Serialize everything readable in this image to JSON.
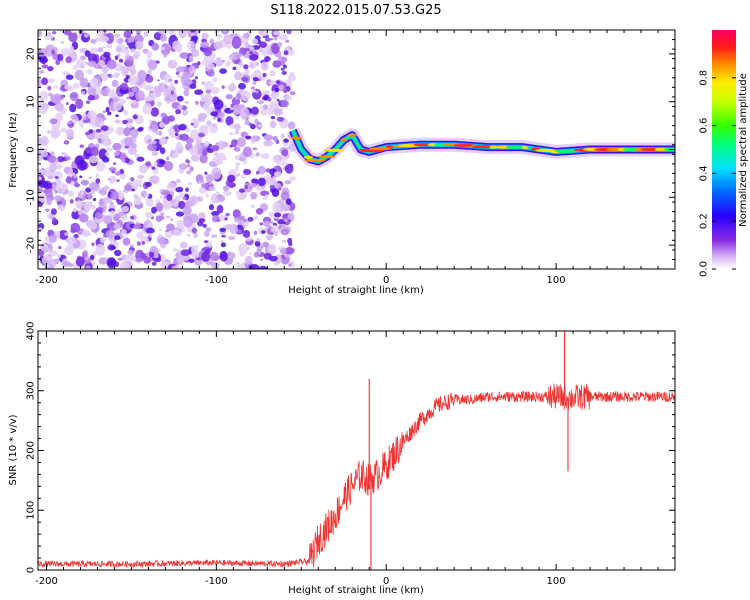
{
  "figure_title": "S118.2022.015.07.53.G25",
  "chart_data": [
    {
      "type": "heatmap",
      "panel": "spectrogram",
      "xlabel": "Height of straight line (km)",
      "ylabel": "Frequency (Hz)",
      "xlim": [
        -205,
        170
      ],
      "ylim": [
        -25,
        25
      ],
      "xticks": [
        -200,
        -100,
        0,
        100
      ],
      "xtick_labels": [
        "-200",
        "-100",
        "0",
        "100"
      ],
      "yticks": [
        -20,
        -10,
        0,
        10,
        20
      ],
      "ytick_labels": [
        "-20",
        "-10",
        "0",
        "10",
        "20"
      ],
      "noise_region_x": [
        -205,
        -55
      ],
      "signal_onset_x": -55,
      "frequency_track": {
        "x": [
          -55,
          -50,
          -45,
          -40,
          -35,
          -30,
          -25,
          -20,
          -15,
          -10,
          -5,
          0,
          20,
          40,
          60,
          80,
          100,
          120,
          140,
          170
        ],
        "y": [
          4,
          0,
          -2,
          -2.5,
          -1.5,
          0,
          2,
          3,
          0,
          -0.5,
          0,
          0.5,
          1,
          1,
          0.5,
          0.5,
          -0.5,
          0,
          0,
          0
        ]
      },
      "colorbar": {
        "label": "Normalized spectral amplitude",
        "range": [
          0,
          1
        ],
        "ticks": [
          0,
          0.2,
          0.4,
          0.6,
          0.8
        ],
        "tick_labels": [
          "0.0",
          "0.2",
          "0.4",
          "0.6",
          "0.8"
        ]
      }
    },
    {
      "type": "line",
      "panel": "snr",
      "xlabel": "Height of straight line (km)",
      "ylabel": "SNR (10 * v/v)",
      "xlim": [
        -205,
        170
      ],
      "ylim": [
        0,
        400
      ],
      "xticks": [
        -200,
        -100,
        0,
        100
      ],
      "xtick_labels": [
        "-200",
        "-100",
        "0",
        "100"
      ],
      "yticks": [
        0,
        100,
        200,
        300,
        400
      ],
      "ytick_labels": [
        "0",
        "100",
        "200",
        "300",
        "400"
      ],
      "series": [
        {
          "name": "SNR",
          "color": "#ee3333",
          "x": [
            -205,
            -150,
            -100,
            -60,
            -45,
            -40,
            -35,
            -30,
            -25,
            -20,
            -15,
            -10,
            -5,
            0,
            5,
            10,
            20,
            30,
            40,
            50,
            60,
            80,
            100,
            110,
            120,
            140,
            170
          ],
          "y": [
            10,
            10,
            12,
            10,
            15,
            50,
            70,
            90,
            120,
            140,
            160,
            150,
            160,
            175,
            195,
            215,
            250,
            275,
            285,
            285,
            290,
            290,
            290,
            288,
            290,
            290,
            290
          ],
          "spikes": [
            {
              "x": -10,
              "y": 320
            },
            {
              "x": -9,
              "y": 0
            },
            {
              "x": 105,
              "y": 400
            },
            {
              "x": 107,
              "y": 165
            }
          ]
        }
      ]
    }
  ]
}
